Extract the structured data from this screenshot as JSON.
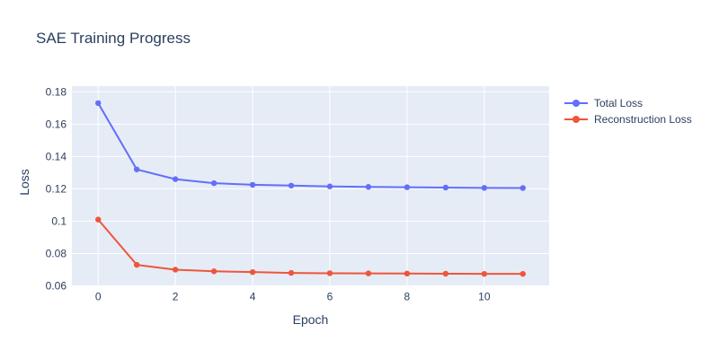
{
  "title": "SAE Training Progress",
  "colors": {
    "paper_bg": "#ffffff",
    "plot_bg": "#e5ecf6",
    "grid": "#ffffff",
    "text": "#2a3f5f",
    "total_loss": "#636efa",
    "reconstruction_loss": "#ef553b"
  },
  "legend": {
    "position": "right-top",
    "items": [
      {
        "label": "Total Loss",
        "color": "#636efa"
      },
      {
        "label": "Reconstruction Loss",
        "color": "#ef553b"
      }
    ]
  },
  "chart_data": {
    "type": "line",
    "title": "SAE Training Progress",
    "xlabel": "Epoch",
    "ylabel": "Loss",
    "x": [
      0,
      1,
      2,
      3,
      4,
      5,
      6,
      7,
      8,
      9,
      10,
      11
    ],
    "series": [
      {
        "name": "Total Loss",
        "color": "#636efa",
        "values": [
          0.173,
          0.132,
          0.126,
          0.1235,
          0.1225,
          0.122,
          0.1215,
          0.1212,
          0.121,
          0.1208,
          0.1206,
          0.1205
        ]
      },
      {
        "name": "Reconstruction Loss",
        "color": "#ef553b",
        "values": [
          0.101,
          0.073,
          0.07,
          0.069,
          0.0685,
          0.068,
          0.0678,
          0.0677,
          0.0676,
          0.0675,
          0.0674,
          0.0674
        ]
      }
    ],
    "xlim": [
      -0.68,
      11.68
    ],
    "ylim": [
      0.06,
      0.1835
    ],
    "xticks": {
      "values": [
        0,
        2,
        4,
        6,
        8,
        10
      ],
      "labels": [
        "0",
        "2",
        "4",
        "6",
        "8",
        "10"
      ]
    },
    "yticks": {
      "values": [
        0.06,
        0.08,
        0.1,
        0.12,
        0.14,
        0.16,
        0.18
      ],
      "labels": [
        "0.06",
        "0.08",
        "0.1",
        "0.12",
        "0.14",
        "0.16",
        "0.18"
      ]
    },
    "grid": true,
    "markers": true,
    "legend_position": "right"
  }
}
